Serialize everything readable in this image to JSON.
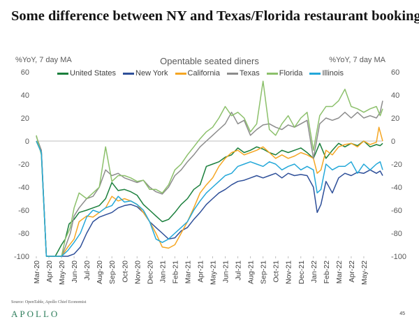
{
  "header": {
    "title": "Some difference between NY and Texas/Florida restaurant bookings"
  },
  "source": "Source: OpenTable, Apollo Chief Economist",
  "logo": "APOLLO",
  "page_number": "45",
  "chart_data": {
    "type": "line",
    "title": "Opentable seated diners",
    "ylabel_left": "%YoY, 7 day MA",
    "ylabel_right": "%YoY, 7 day MA",
    "ylim": [
      -100,
      60
    ],
    "yticks": [
      -100,
      -80,
      -60,
      -40,
      -20,
      0,
      20,
      40,
      60
    ],
    "x_range": [
      0,
      27.5
    ],
    "x_tick_labels": [
      "Mar-20",
      "Apr-20",
      "May-20",
      "Jun-20",
      "Jul-20",
      "Aug-20",
      "Sep-20",
      "Oct-20",
      "Nov-20",
      "Dec-20",
      "Jan-21",
      "Feb-21",
      "Mar-21",
      "Apr-21",
      "May-21",
      "Jun-21",
      "Jul-21",
      "Aug-21",
      "Sep-21",
      "Oct-21",
      "Nov-21",
      "Dec-21",
      "Jan-22",
      "Feb-22",
      "Mar-22",
      "Apr-22",
      "May-22"
    ],
    "series": [
      {
        "name": "United States",
        "color": "#1a7f3c",
        "x": [
          0,
          0.4,
          0.8,
          1.5,
          2,
          2.3,
          2.6,
          3,
          3.4,
          4,
          4.5,
          5,
          5.5,
          6,
          6.5,
          7,
          7.5,
          8,
          8.5,
          9,
          9.5,
          10,
          10.5,
          11,
          11.5,
          12,
          12.5,
          13,
          13.5,
          14,
          14.5,
          15,
          15.5,
          16,
          16.5,
          17,
          17.5,
          18,
          18.5,
          19,
          19.5,
          20,
          20.5,
          21,
          21.5,
          22,
          22.5,
          23,
          23.5,
          24,
          24.5,
          25,
          25.5,
          26,
          26.5,
          27,
          27.3,
          27.5
        ],
        "values": [
          0,
          -10,
          -100,
          -100,
          -90,
          -85,
          -72,
          -68,
          -62,
          -60,
          -58,
          -56,
          -50,
          -36,
          -43,
          -42,
          -44,
          -47,
          -55,
          -60,
          -65,
          -70,
          -68,
          -62,
          -55,
          -50,
          -42,
          -38,
          -22,
          -20,
          -18,
          -14,
          -12,
          -6,
          -10,
          -8,
          -5,
          -7,
          -10,
          -12,
          -8,
          -10,
          -8,
          -6,
          -10,
          -15,
          -2,
          -15,
          -8,
          -2,
          -5,
          -2,
          -4,
          0,
          -5,
          -3,
          -4,
          -2
        ]
      },
      {
        "name": "New York",
        "color": "#2e4f99",
        "x": [
          0,
          0.4,
          0.8,
          2,
          2.5,
          3,
          3.5,
          4,
          4.5,
          5,
          5.5,
          6,
          6.5,
          7,
          7.5,
          8,
          8.5,
          9,
          9.5,
          10,
          10.5,
          11,
          11.5,
          12,
          12.5,
          13,
          13.5,
          14,
          14.5,
          15,
          15.5,
          16,
          16.5,
          17,
          17.5,
          18,
          18.5,
          19,
          19.5,
          20,
          20.5,
          21,
          21.5,
          22,
          22.3,
          22.6,
          23,
          23.5,
          24,
          24.5,
          25,
          25.5,
          26,
          26.5,
          27,
          27.3,
          27.5
        ],
        "values": [
          0,
          -8,
          -100,
          -100,
          -100,
          -98,
          -92,
          -80,
          -70,
          -66,
          -64,
          -62,
          -58,
          -56,
          -55,
          -57,
          -62,
          -70,
          -75,
          -80,
          -85,
          -84,
          -78,
          -75,
          -68,
          -62,
          -55,
          -50,
          -45,
          -42,
          -38,
          -35,
          -34,
          -32,
          -30,
          -32,
          -30,
          -28,
          -32,
          -28,
          -30,
          -29,
          -30,
          -40,
          -62,
          -55,
          -35,
          -45,
          -32,
          -28,
          -30,
          -27,
          -28,
          -25,
          -28,
          -26,
          -30
        ]
      },
      {
        "name": "California",
        "color": "#f5a623",
        "x": [
          0,
          0.4,
          0.8,
          1.5,
          2,
          2.5,
          3,
          3.4,
          4,
          4.5,
          5,
          5.5,
          6,
          6.5,
          7,
          7.5,
          8,
          8.5,
          9,
          9.5,
          10,
          10.5,
          11,
          11.5,
          12,
          12.5,
          13,
          13.5,
          14,
          14.5,
          15,
          15.5,
          16,
          16.5,
          17,
          17.5,
          18,
          18.5,
          19,
          19.5,
          20,
          20.5,
          21,
          21.5,
          22,
          22.3,
          22.6,
          23,
          23.5,
          24,
          24.5,
          25,
          25.5,
          26,
          26.5,
          27,
          27.2,
          27.5
        ],
        "values": [
          0,
          -10,
          -100,
          -100,
          -100,
          -92,
          -85,
          -70,
          -65,
          -66,
          -62,
          -58,
          -48,
          -52,
          -50,
          -52,
          -55,
          -62,
          -70,
          -80,
          -92,
          -93,
          -90,
          -80,
          -70,
          -58,
          -45,
          -38,
          -32,
          -22,
          -15,
          -10,
          -8,
          -12,
          -10,
          -8,
          -5,
          -10,
          -15,
          -12,
          -15,
          -13,
          -10,
          -12,
          -15,
          -28,
          -25,
          -8,
          -12,
          -5,
          -3,
          -2,
          -5,
          0,
          -3,
          -1,
          12,
          0
        ]
      },
      {
        "name": "Texas",
        "color": "#8c8c8c",
        "x": [
          0,
          0.4,
          0.8,
          1.5,
          2,
          2.3,
          2.7,
          3,
          3.4,
          4,
          4.5,
          5,
          5.5,
          6,
          6.5,
          7,
          7.5,
          8,
          8.5,
          9,
          9.5,
          10,
          10.5,
          11,
          11.5,
          12,
          12.5,
          13,
          13.5,
          14,
          14.5,
          15,
          15.5,
          16,
          16.5,
          17,
          17.5,
          18,
          18.5,
          19,
          19.5,
          20,
          20.5,
          21,
          21.5,
          22,
          22.5,
          23,
          23.5,
          24,
          24.5,
          25,
          25.5,
          26,
          26.5,
          27,
          27.3,
          27.5
        ],
        "values": [
          4,
          -8,
          -100,
          -100,
          -100,
          -92,
          -80,
          -65,
          -58,
          -50,
          -48,
          -40,
          -25,
          -30,
          -28,
          -32,
          -34,
          -36,
          -34,
          -40,
          -44,
          -46,
          -40,
          -30,
          -25,
          -18,
          -12,
          -5,
          0,
          5,
          10,
          15,
          25,
          15,
          18,
          5,
          10,
          14,
          15,
          12,
          10,
          14,
          12,
          15,
          18,
          -15,
          15,
          20,
          18,
          20,
          25,
          20,
          25,
          20,
          22,
          20,
          25,
          35
        ]
      },
      {
        "name": "Florida",
        "color": "#8cc06b",
        "x": [
          0,
          0.4,
          0.8,
          1.5,
          2,
          2.3,
          2.7,
          3,
          3.4,
          4,
          4.5,
          5,
          5.5,
          6,
          6.5,
          7,
          7.5,
          8,
          8.5,
          9,
          9.5,
          10,
          10.5,
          11,
          11.5,
          12,
          12.5,
          13,
          13.5,
          14,
          14.5,
          15,
          15.5,
          16,
          16.5,
          17,
          17.5,
          18,
          18.5,
          19,
          19.5,
          20,
          20.5,
          21,
          21.5,
          22,
          22.5,
          23,
          23.5,
          24,
          24.5,
          25,
          25.5,
          26,
          26.5,
          27,
          27.3,
          27.5
        ],
        "values": [
          5,
          -12,
          -100,
          -100,
          -100,
          -85,
          -75,
          -58,
          -45,
          -50,
          -45,
          -40,
          -5,
          -35,
          -30,
          -30,
          -32,
          -35,
          -34,
          -42,
          -42,
          -45,
          -38,
          -25,
          -20,
          -12,
          -5,
          2,
          8,
          12,
          20,
          30,
          22,
          25,
          20,
          8,
          15,
          52,
          10,
          5,
          15,
          22,
          12,
          20,
          25,
          -8,
          22,
          30,
          30,
          35,
          45,
          30,
          28,
          25,
          28,
          30,
          22,
          28
        ]
      },
      {
        "name": "Illinois",
        "color": "#24a8d9",
        "x": [
          0,
          0.4,
          0.8,
          2,
          2.5,
          3,
          3.5,
          4,
          4.5,
          5,
          5.5,
          6,
          6.5,
          7,
          7.5,
          8,
          8.5,
          9,
          9.5,
          10,
          10.5,
          11,
          11.5,
          12,
          12.5,
          13,
          13.5,
          14,
          14.5,
          15,
          15.5,
          16,
          16.5,
          17,
          17.5,
          18,
          18.5,
          19,
          19.5,
          20,
          20.5,
          21,
          21.5,
          22,
          22.3,
          22.6,
          23,
          23.5,
          24,
          24.5,
          25,
          25.5,
          26,
          26.5,
          27,
          27.3,
          27.5
        ],
        "values": [
          0,
          -10,
          -100,
          -100,
          -95,
          -88,
          -80,
          -66,
          -60,
          -62,
          -58,
          -56,
          -48,
          -53,
          -52,
          -55,
          -60,
          -70,
          -85,
          -88,
          -85,
          -80,
          -75,
          -70,
          -60,
          -52,
          -45,
          -40,
          -35,
          -30,
          -28,
          -22,
          -20,
          -18,
          -20,
          -22,
          -18,
          -20,
          -25,
          -22,
          -20,
          -25,
          -22,
          -25,
          -45,
          -42,
          -20,
          -25,
          -22,
          -22,
          -18,
          -28,
          -20,
          -25,
          -20,
          -18,
          -25
        ]
      }
    ]
  }
}
